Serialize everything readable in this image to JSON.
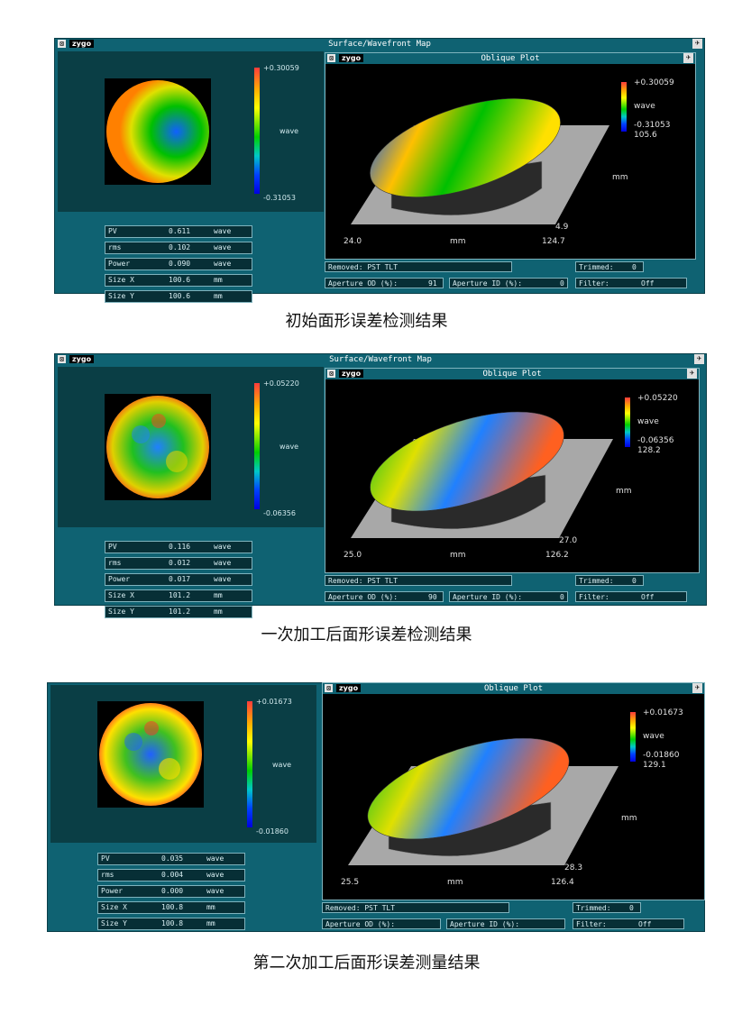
{
  "captions": [
    "初始面形误差检测结果",
    "一次加工后面形误差检测结果",
    "第二次加工后面形误差测量结果"
  ],
  "panels": [
    {
      "window_title": "Surface/Wavefront Map",
      "logo": "zygo",
      "map_colorbar": {
        "max": "+0.30059",
        "unit": "wave",
        "min": "-0.31053"
      },
      "stats": [
        {
          "label": "PV",
          "value": "0.611",
          "unit": "wave"
        },
        {
          "label": "rms",
          "value": "0.102",
          "unit": "wave"
        },
        {
          "label": "Power",
          "value": "0.090",
          "unit": "wave"
        },
        {
          "label": "Size X",
          "value": "100.6",
          "unit": "mm"
        },
        {
          "label": "Size Y",
          "value": "100.6",
          "unit": "mm"
        }
      ],
      "oblique": {
        "title": "Oblique Plot",
        "max": "+0.30059",
        "unit": "wave",
        "min": "-0.31053",
        "scale": "105.6",
        "x_start": "24.0",
        "x_end": "124.7",
        "x_unit": "mm",
        "y_unit": "mm",
        "y_start": "4.9"
      },
      "removed": "Removed: PST TLT",
      "trimmed_label": "Trimmed:",
      "trimmed_value": "0",
      "aperture_od_label": "Aperture OD (%):",
      "aperture_od_value": "91",
      "aperture_id_label": "Aperture ID (%):",
      "aperture_id_value": "0",
      "filter_label": "Filter:",
      "filter_value": "Off"
    },
    {
      "window_title": "Surface/Wavefront Map",
      "logo": "zygo",
      "map_colorbar": {
        "max": "+0.05220",
        "unit": "wave",
        "min": "-0.06356"
      },
      "stats": [
        {
          "label": "PV",
          "value": "0.116",
          "unit": "wave"
        },
        {
          "label": "rms",
          "value": "0.012",
          "unit": "wave"
        },
        {
          "label": "Power",
          "value": "0.017",
          "unit": "wave"
        },
        {
          "label": "Size X",
          "value": "101.2",
          "unit": "mm"
        },
        {
          "label": "Size Y",
          "value": "101.2",
          "unit": "mm"
        }
      ],
      "oblique": {
        "title": "Oblique Plot",
        "max": "+0.05220",
        "unit": "wave",
        "min": "-0.06356",
        "scale": "128.2",
        "x_start": "25.0",
        "x_end": "126.2",
        "x_unit": "mm",
        "y_unit": "mm",
        "y_start": "27.0"
      },
      "removed": "Removed: PST TLT",
      "trimmed_label": "Trimmed:",
      "trimmed_value": "0",
      "aperture_od_label": "Aperture OD (%):",
      "aperture_od_value": "90",
      "aperture_id_label": "Aperture ID (%):",
      "aperture_id_value": "0",
      "filter_label": "Filter:",
      "filter_value": "Off"
    },
    {
      "window_title": "",
      "logo": "zygo",
      "map_colorbar": {
        "max": "+0.01673",
        "unit": "wave",
        "min": "-0.01860"
      },
      "stats": [
        {
          "label": "PV",
          "value": "0.035",
          "unit": "wave"
        },
        {
          "label": "rms",
          "value": "0.004",
          "unit": "wave"
        },
        {
          "label": "Power",
          "value": "0.000",
          "unit": "wave"
        },
        {
          "label": "Size X",
          "value": "100.8",
          "unit": "mm"
        },
        {
          "label": "Size Y",
          "value": "100.8",
          "unit": "mm"
        }
      ],
      "oblique": {
        "title": "Oblique Plot",
        "max": "+0.01673",
        "unit": "wave",
        "min": "-0.01860",
        "scale": "129.1",
        "x_start": "25.5",
        "x_end": "126.4",
        "x_unit": "mm",
        "y_unit": "mm",
        "y_start": "28.3"
      },
      "removed": "Removed: PST TLT",
      "trimmed_label": "Trimmed:",
      "trimmed_value": "0",
      "aperture_od_label": "Aperture OD (%):",
      "aperture_od_value": "",
      "aperture_id_label": "Aperture ID (%):",
      "aperture_id_value": "",
      "filter_label": "Filter:",
      "filter_value": "Off"
    }
  ]
}
